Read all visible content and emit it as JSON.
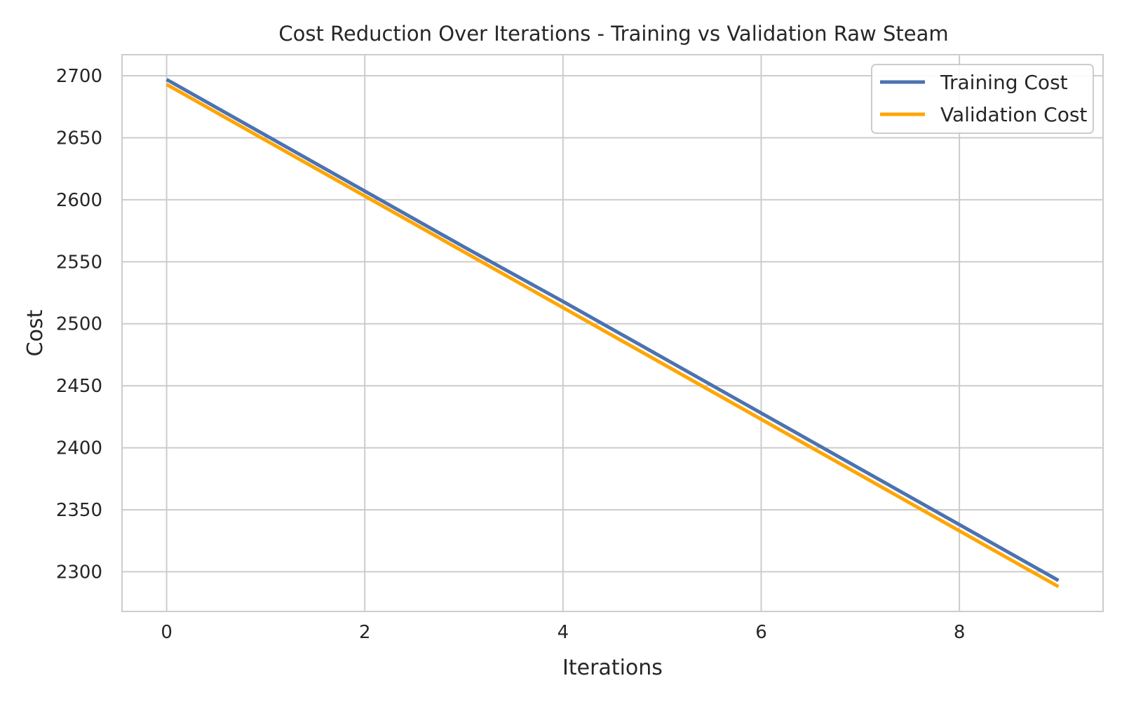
{
  "chart_data": {
    "type": "line",
    "title": "Cost Reduction Over Iterations - Training vs Validation Raw Steam",
    "xlabel": "Iterations",
    "ylabel": "Cost",
    "x": [
      0,
      1,
      2,
      3,
      4,
      5,
      6,
      7,
      8,
      9
    ],
    "xlim": [
      -0.45,
      9.45
    ],
    "ylim": [
      2268,
      2717
    ],
    "xticks": [
      0,
      2,
      4,
      6,
      8
    ],
    "xtick_labels": [
      "0",
      "2",
      "4",
      "6",
      "8"
    ],
    "yticks": [
      2300,
      2350,
      2400,
      2450,
      2500,
      2550,
      2600,
      2650,
      2700
    ],
    "ytick_labels": [
      "2300",
      "2350",
      "2400",
      "2450",
      "2500",
      "2550",
      "2600",
      "2650",
      "2700"
    ],
    "grid": true,
    "legend_position": "top-right",
    "series": [
      {
        "name": "Training Cost",
        "color": "#4c72b0",
        "values": [
          2697,
          2652,
          2607,
          2562,
          2518,
          2473,
          2428,
          2383,
          2338,
          2293
        ]
      },
      {
        "name": "Validation Cost",
        "color": "#ffa500",
        "values": [
          2693,
          2648,
          2603,
          2558,
          2513,
          2468,
          2423,
          2378,
          2333,
          2288
        ]
      }
    ]
  }
}
